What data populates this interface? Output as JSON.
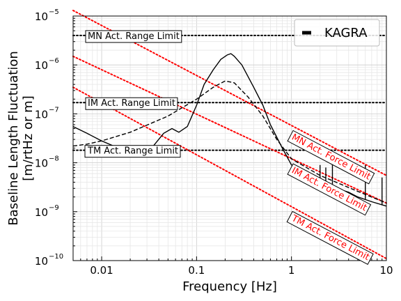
{
  "chart_data": {
    "type": "line",
    "xscale": "log",
    "yscale": "log",
    "xlim": [
      0.005,
      10
    ],
    "ylim": [
      1e-10,
      1e-05
    ],
    "grid": true,
    "xlabel": "Frequency [Hz]",
    "ylabel": [
      "Baseline Length Fluctuation",
      "[m/rtHz or m]"
    ],
    "x_ticks": [
      {
        "value": 0.01,
        "label": "0.01"
      },
      {
        "value": 0.1,
        "label": "0.1"
      },
      {
        "value": 1,
        "label": "1"
      },
      {
        "value": 10,
        "label": "10"
      }
    ],
    "y_ticks": [
      {
        "value": 1e-10,
        "mant": "10",
        "exp": "−10"
      },
      {
        "value": 1e-09,
        "mant": "10",
        "exp": "−9"
      },
      {
        "value": 1e-08,
        "mant": "10",
        "exp": "−8"
      },
      {
        "value": 1e-07,
        "mant": "10",
        "exp": "−7"
      },
      {
        "value": 1e-06,
        "mant": "10",
        "exp": "−6"
      },
      {
        "value": 1e-05,
        "mant": "10",
        "exp": "−5"
      }
    ],
    "legend": {
      "position": "top-right",
      "entries": [
        {
          "label": "KAGRA",
          "color": "#000000"
        }
      ]
    },
    "series": [
      {
        "name": "KAGRA",
        "style": "solid",
        "color": "#000000",
        "x": [
          0.005,
          0.007,
          0.01,
          0.015,
          0.02,
          0.027,
          0.035,
          0.045,
          0.055,
          0.065,
          0.08,
          0.1,
          0.12,
          0.15,
          0.18,
          0.21,
          0.23,
          0.25,
          0.3,
          0.4,
          0.5,
          0.6,
          0.8,
          1.0,
          1.5,
          2.0,
          3.0,
          4.0,
          5.0,
          7.0,
          10.0
        ],
        "y": [
          5.5e-08,
          4e-08,
          2.8e-08,
          2e-08,
          1.65e-08,
          1.5e-08,
          2.2e-08,
          4e-08,
          5e-08,
          4.2e-08,
          5.5e-08,
          1.5e-07,
          4e-07,
          8e-07,
          1.3e-06,
          1.6e-06,
          1.7e-06,
          1.5e-06,
          1e-06,
          3.5e-07,
          1.5e-07,
          6e-08,
          2e-08,
          9e-09,
          6e-09,
          4.5e-09,
          3e-09,
          2.5e-09,
          2e-09,
          1.6e-09,
          1.3e-09
        ]
      },
      {
        "name": "",
        "style": "dashed",
        "color": "#000000",
        "x": [
          0.005,
          0.007,
          0.01,
          0.02,
          0.05,
          0.1,
          0.15,
          0.2,
          0.25,
          0.35,
          0.5,
          0.7,
          1.0,
          2.0,
          5.0,
          10.0
        ],
        "y": [
          2.2e-08,
          2.4e-08,
          2.8e-08,
          4.2e-08,
          9e-08,
          2e-07,
          3.5e-07,
          4.7e-07,
          4.3e-07,
          2.2e-07,
          9e-08,
          3e-08,
          1.2e-08,
          5.5e-09,
          2.6e-09,
          1.5e-09
        ]
      }
    ],
    "spikes": [
      {
        "x": 2.0,
        "top": 9e-09
      },
      {
        "x": 2.3,
        "top": 8e-09
      },
      {
        "x": 2.7,
        "top": 1e-08
      },
      {
        "x": 6.0,
        "top": 9e-09
      },
      {
        "x": 9.0,
        "top": 5e-09
      }
    ],
    "range_limits": [
      {
        "label": "MN Act. Range Limit",
        "y": 4e-06
      },
      {
        "label": "IM Act. Range Limit",
        "y": 1.7e-07
      },
      {
        "label": "TM Act. Range Limit",
        "y": 1.8e-08
      }
    ],
    "force_limits": [
      {
        "label": "MN Act. Force Limit",
        "x": [
          0.005,
          10
        ],
        "y": [
          1.3e-05,
          5.5e-09
        ]
      },
      {
        "label": "IM Act. Force Limit",
        "x": [
          0.005,
          10
        ],
        "y": [
          1.5e-06,
          1.5e-09
        ]
      },
      {
        "label": "TM Act. Force Limit",
        "x": [
          0.005,
          10
        ],
        "y": [
          3.5e-07,
          1.1e-10
        ]
      }
    ],
    "limit_line_colors": {
      "range": "#000000",
      "force": "#ff0000"
    }
  }
}
